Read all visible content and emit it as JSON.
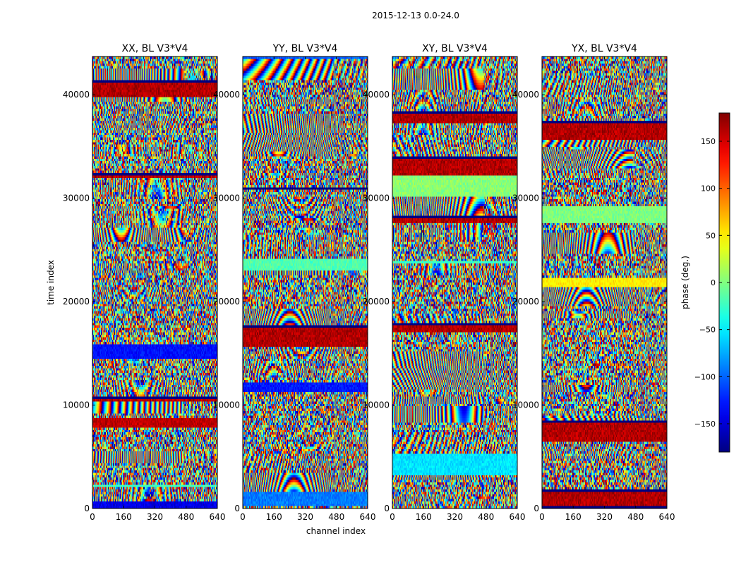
{
  "chart_data": {
    "type": "heatmap",
    "suptitle": "2015-12-13 0.0-24.0",
    "panels": [
      {
        "title": "XX, BL V3*V4",
        "seed": 11
      },
      {
        "title": "YY, BL V3*V4",
        "seed": 23
      },
      {
        "title": "XY, BL V3*V4",
        "seed": 37
      },
      {
        "title": "YX, BL V3*V4",
        "seed": 53
      }
    ],
    "xlabel": "channel index",
    "ylabel": "time index",
    "xlim": [
      0,
      640
    ],
    "ylim": [
      0,
      43700
    ],
    "xticks": [
      0,
      160,
      320,
      480,
      640
    ],
    "yticks": [
      0,
      10000,
      20000,
      30000,
      40000
    ],
    "colorbar": {
      "label": "phase (deg.)",
      "range": [
        -180,
        180
      ],
      "ticks": [
        -150,
        -100,
        -50,
        0,
        50,
        100,
        150
      ],
      "colormap": "jet"
    }
  }
}
